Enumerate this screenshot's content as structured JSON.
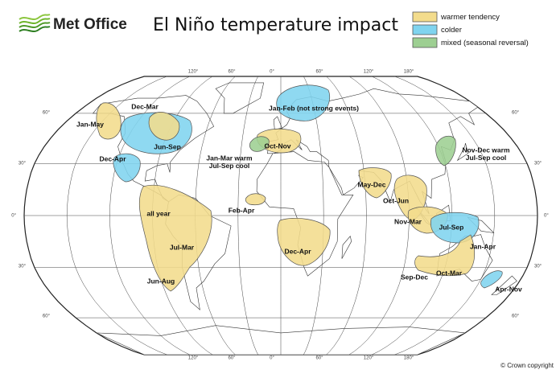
{
  "header": {
    "logo": "Met Office",
    "title": "El Niño temperature impact"
  },
  "legend": [
    {
      "label": "warmer tendency",
      "color": "#f3dc8c"
    },
    {
      "label": "colder",
      "color": "#80d4ef"
    },
    {
      "label": "mixed (seasonal reversal)",
      "color": "#9dcf92"
    }
  ],
  "regions": [
    {
      "lines": [
        "Jan-May"
      ],
      "color": "#f3dc8c"
    },
    {
      "lines": [
        "Jun-Sep"
      ],
      "color": "#80d4ef"
    },
    {
      "lines": [
        "Dec-Mar"
      ],
      "color": "#f3dc8c"
    },
    {
      "lines": [
        "Dec-Apr"
      ],
      "color": "#80d4ef"
    },
    {
      "lines": [
        "all year"
      ],
      "color": "#f3dc8c"
    },
    {
      "lines": [
        "Jul-Mar"
      ],
      "color": "#f3dc8c"
    },
    {
      "lines": [
        "Jun-Aug"
      ],
      "color": "#f3dc8c"
    },
    {
      "lines": [
        "Jan-Feb (not strong events)"
      ],
      "color": "#80d4ef"
    },
    {
      "lines": [
        "Oct-Nov"
      ],
      "color": "#f3dc8c"
    },
    {
      "lines": [
        "Jan-Mar warm",
        "Jul-Sep cool"
      ],
      "color": "#9dcf92"
    },
    {
      "lines": [
        "Feb-Apr"
      ],
      "color": "#f3dc8c"
    },
    {
      "lines": [
        "Dec-Apr"
      ],
      "color": "#f3dc8c"
    },
    {
      "lines": [
        "May-Dec"
      ],
      "color": "#f3dc8c"
    },
    {
      "lines": [
        "Oct-Jun"
      ],
      "color": "#f3dc8c"
    },
    {
      "lines": [
        "Nov-Mar"
      ],
      "color": "#f3dc8c"
    },
    {
      "lines": [
        "Jul-Sep"
      ],
      "color": "#80d4ef"
    },
    {
      "lines": [
        "Nov-Dec warm",
        "Jul-Sep cool"
      ],
      "color": "#9dcf92"
    },
    {
      "lines": [
        "Jan-Apr"
      ],
      "color": "#f3dc8c"
    },
    {
      "lines": [
        "Sep-Dec"
      ],
      "color": "#f3dc8c"
    },
    {
      "lines": [
        "Oct-Mar"
      ],
      "color": "#f3dc8c"
    },
    {
      "lines": [
        "Apr-Nov"
      ],
      "color": "#80d4ef"
    }
  ],
  "graticule": {
    "top": [
      "120°",
      "60°",
      "0°",
      "60°",
      "120°",
      "180°"
    ],
    "bottom": [
      "120°",
      "60°",
      "0°",
      "60°",
      "120°",
      "180°"
    ],
    "left": [
      "60°",
      "30°",
      "0°",
      "30°",
      "60°"
    ],
    "right": [
      "60°",
      "30°",
      "0°",
      "30°",
      "60°"
    ]
  },
  "copyright": "© Crown copyright"
}
